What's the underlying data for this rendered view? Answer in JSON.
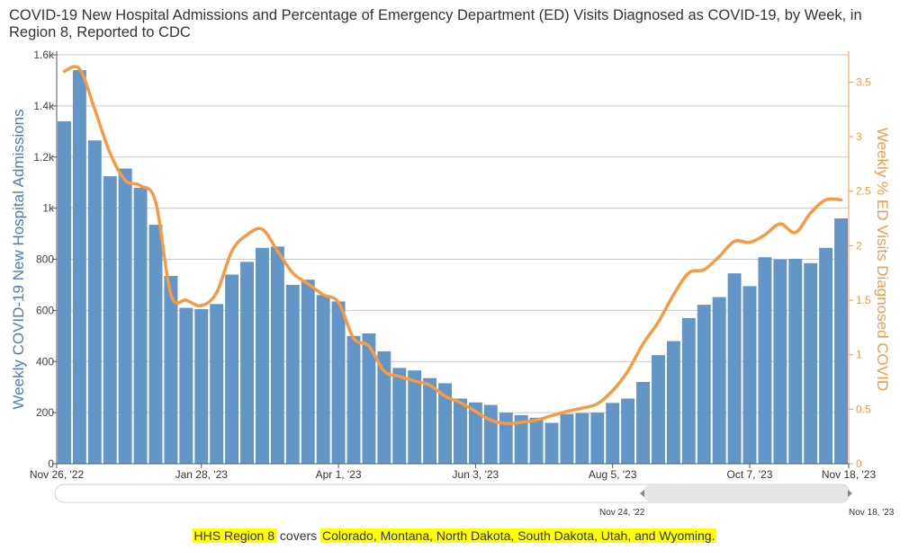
{
  "title": "COVID-19 New Hospital Admissions and Percentage of Emergency Department (ED) Visits Diagnosed as COVID-19, by Week, in Region 8, Reported to CDC",
  "footnote": {
    "region_label": "HHS Region 8",
    "connector": "covers",
    "states": "Colorado, Montana, North Dakota, South Dakota, Utah, and Wyoming."
  },
  "range_selector": {
    "start_label": "Nov 24, '22",
    "end_label": "Nov 18, '23"
  },
  "colors": {
    "bars": "#6396c6",
    "bar_axis": "#4a7fb5",
    "line": "#f79a42",
    "line_axis": "#f79a42",
    "grid": "#c8c8c8",
    "highlight": "#ffff00"
  },
  "chart_data": {
    "type": "bar",
    "grid": true,
    "x_tick_labels": [
      "Nov 26, '22",
      "Jan 28, '23",
      "Apr 1, '23",
      "Jun 3, '23",
      "Aug 5, '23",
      "Oct 7, '23",
      "Nov 18, '23"
    ],
    "y_left": {
      "label": "Weekly COVID-19 New Hospital Admissions",
      "range": [
        0,
        1600
      ],
      "ticks": [
        0,
        200,
        400,
        600,
        800,
        1000,
        1200,
        1400,
        1600
      ],
      "tick_labels": [
        "0",
        "200",
        "400",
        "600",
        "800",
        "1k",
        "1.2k",
        "1.4k",
        "1.6k"
      ]
    },
    "y_right": {
      "label": "Weekly % ED Visits Diagnosed COVID",
      "range": [
        0,
        3.75
      ],
      "ticks": [
        0,
        0.5,
        1,
        1.5,
        2,
        2.5,
        3,
        3.5
      ],
      "tick_labels": [
        "0",
        "0.5",
        "1",
        "1.5",
        "2",
        "2.5",
        "3",
        "3.5"
      ]
    },
    "series": [
      {
        "name": "Weekly COVID-19 New Hospital Admissions",
        "axis": "left",
        "type": "bar",
        "values": [
          1340,
          1540,
          1265,
          1125,
          1155,
          1080,
          935,
          735,
          610,
          605,
          625,
          740,
          790,
          845,
          850,
          700,
          720,
          660,
          635,
          500,
          510,
          440,
          375,
          365,
          335,
          315,
          255,
          240,
          230,
          200,
          190,
          180,
          160,
          195,
          198,
          200,
          238,
          255,
          320,
          425,
          480,
          570,
          622,
          652,
          745,
          695,
          808,
          800,
          802,
          785,
          845,
          960
        ]
      },
      {
        "name": "Weekly % ED Visits Diagnosed COVID",
        "axis": "right",
        "type": "line",
        "values": [
          3.6,
          3.62,
          3.25,
          2.85,
          2.6,
          2.55,
          2.4,
          1.55,
          1.5,
          1.45,
          1.57,
          1.95,
          2.1,
          2.15,
          1.95,
          1.75,
          1.65,
          1.55,
          1.48,
          1.15,
          1.08,
          0.85,
          0.8,
          0.76,
          0.72,
          0.62,
          0.56,
          0.48,
          0.4,
          0.37,
          0.38,
          0.4,
          0.44,
          0.48,
          0.51,
          0.55,
          0.67,
          0.85,
          1.1,
          1.3,
          1.55,
          1.75,
          1.78,
          1.9,
          2.04,
          2.03,
          2.1,
          2.2,
          2.12,
          2.3,
          2.42,
          2.42
        ]
      }
    ]
  }
}
